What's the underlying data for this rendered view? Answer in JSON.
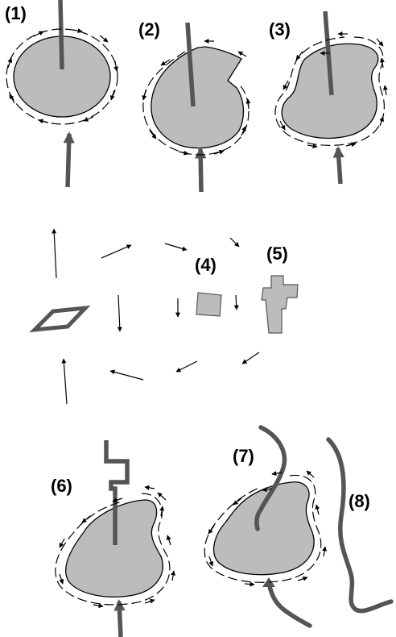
{
  "panels": [
    {
      "id": "1",
      "label": "(1)"
    },
    {
      "id": "2",
      "label": "(2)"
    },
    {
      "id": "3",
      "label": "(3)"
    },
    {
      "id": "4",
      "label": "(4)"
    },
    {
      "id": "5",
      "label": "(5)"
    },
    {
      "id": "6",
      "label": "(6)"
    },
    {
      "id": "7",
      "label": "(7)"
    },
    {
      "id": "8",
      "label": "(8)"
    }
  ],
  "colors": {
    "blob_fill": "#bcbcbc",
    "rod": "#555555",
    "outline": "#000000"
  }
}
